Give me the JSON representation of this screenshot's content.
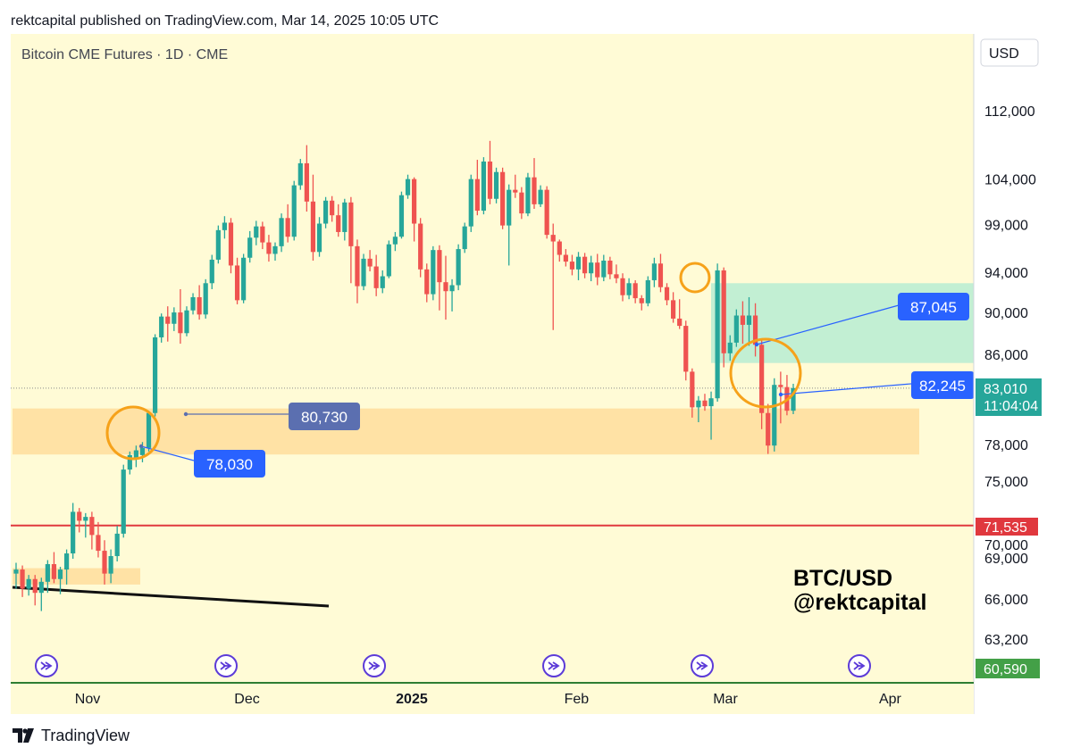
{
  "header": {
    "text": "rektcapital published on TradingView.com, Mar 14, 2025 10:05 UTC"
  },
  "footer": {
    "brand": "TradingView"
  },
  "colors": {
    "background": "#fffbd6",
    "up": "#26a69a",
    "down": "#ef5350",
    "support_zone": "#ffdfa0",
    "resistance_zone": "#b7ecd2",
    "red_line": "#e0383e",
    "circle": "#f6a21a",
    "label_blue": "#2962ff",
    "label_slate": "#5b6fb0",
    "price_label": "#26a69a",
    "low_label": "#43a047"
  },
  "chart_data": {
    "type": "candlestick",
    "title": "Bitcoin CME Futures · 1D · CME",
    "currency": "USD",
    "y_scale": "log",
    "y_ticks": [
      "112,000",
      "104,000",
      "99,000",
      "94,000",
      "90,000",
      "86,000",
      "78,000",
      "75,000",
      "70,000",
      "69,000",
      "66,000",
      "63,200"
    ],
    "x_ticks": [
      "Nov",
      "Dec",
      "2025",
      "Feb",
      "Mar",
      "Apr"
    ],
    "current_price": "83,010",
    "countdown": "11:04:04",
    "red_line_label": "71,535",
    "red_line_value": 71535,
    "low_label": "60,590",
    "overlay_text": [
      "BTC/USD",
      "@rektcapital"
    ],
    "callouts": [
      {
        "label": "80,730"
      },
      {
        "label": "78,030"
      },
      {
        "label": "87,045"
      },
      {
        "label": "82,245"
      }
    ],
    "candles": [
      {
        "d": "2024-10-22",
        "o": 67900,
        "h": 68700,
        "l": 66800,
        "c": 68200
      },
      {
        "d": "2024-10-23",
        "o": 68200,
        "h": 68500,
        "l": 66200,
        "c": 66800
      },
      {
        "d": "2024-10-24",
        "o": 66800,
        "h": 67800,
        "l": 66300,
        "c": 67500
      },
      {
        "d": "2024-10-25",
        "o": 67500,
        "h": 67800,
        "l": 65600,
        "c": 66500
      },
      {
        "d": "2024-10-28",
        "o": 66500,
        "h": 67600,
        "l": 65200,
        "c": 67300
      },
      {
        "d": "2024-10-29",
        "o": 67300,
        "h": 68900,
        "l": 66500,
        "c": 68600
      },
      {
        "d": "2024-10-30",
        "o": 68600,
        "h": 69500,
        "l": 67200,
        "c": 67500
      },
      {
        "d": "2024-10-31",
        "o": 67500,
        "h": 68400,
        "l": 66400,
        "c": 68200
      },
      {
        "d": "2024-11-01",
        "o": 68200,
        "h": 69700,
        "l": 67100,
        "c": 69400
      },
      {
        "d": "2024-11-04",
        "o": 69400,
        "h": 73300,
        "l": 69000,
        "c": 72600
      },
      {
        "d": "2024-11-05",
        "o": 72600,
        "h": 72900,
        "l": 71000,
        "c": 71900
      },
      {
        "d": "2024-11-06",
        "o": 71900,
        "h": 72500,
        "l": 70600,
        "c": 72200
      },
      {
        "d": "2024-11-07",
        "o": 72200,
        "h": 72600,
        "l": 69700,
        "c": 70800
      },
      {
        "d": "2024-11-08",
        "o": 70800,
        "h": 71800,
        "l": 69100,
        "c": 69600
      },
      {
        "d": "2024-11-11",
        "o": 69600,
        "h": 70400,
        "l": 67100,
        "c": 67900
      },
      {
        "d": "2024-11-12",
        "o": 67900,
        "h": 69700,
        "l": 67200,
        "c": 69200
      },
      {
        "d": "2024-11-13",
        "o": 69200,
        "h": 71500,
        "l": 68800,
        "c": 70900
      },
      {
        "d": "2024-11-14",
        "o": 70900,
        "h": 76400,
        "l": 70600,
        "c": 76000
      },
      {
        "d": "2024-11-15",
        "o": 76000,
        "h": 77500,
        "l": 75600,
        "c": 77200
      },
      {
        "d": "2024-11-18",
        "o": 77000,
        "h": 78000,
        "l": 76200,
        "c": 77600
      },
      {
        "d": "2024-11-19",
        "o": 77200,
        "h": 78300,
        "l": 76600,
        "c": 77800
      },
      {
        "d": "2024-11-20",
        "o": 77800,
        "h": 81000,
        "l": 77500,
        "c": 80800
      },
      {
        "d": "2024-11-21",
        "o": 80800,
        "h": 88000,
        "l": 80500,
        "c": 87700
      },
      {
        "d": "2024-11-22",
        "o": 87700,
        "h": 90000,
        "l": 87200,
        "c": 89700
      },
      {
        "d": "2024-11-25",
        "o": 89700,
        "h": 90700,
        "l": 87300,
        "c": 89000
      },
      {
        "d": "2024-11-26",
        "o": 89000,
        "h": 90600,
        "l": 88300,
        "c": 90100
      },
      {
        "d": "2024-11-27",
        "o": 90100,
        "h": 92400,
        "l": 87100,
        "c": 88100
      },
      {
        "d": "2024-11-28",
        "o": 88100,
        "h": 90700,
        "l": 87800,
        "c": 90300
      },
      {
        "d": "2024-11-29",
        "o": 90300,
        "h": 92000,
        "l": 89900,
        "c": 91600
      },
      {
        "d": "2024-12-02",
        "o": 91600,
        "h": 92800,
        "l": 89400,
        "c": 89900
      },
      {
        "d": "2024-12-03",
        "o": 89900,
        "h": 93400,
        "l": 89500,
        "c": 93000
      },
      {
        "d": "2024-12-04",
        "o": 93000,
        "h": 95900,
        "l": 92400,
        "c": 95400
      },
      {
        "d": "2024-12-05",
        "o": 95400,
        "h": 99000,
        "l": 95000,
        "c": 98500
      },
      {
        "d": "2024-12-06",
        "o": 98500,
        "h": 100000,
        "l": 97600,
        "c": 99300
      },
      {
        "d": "2024-12-09",
        "o": 99300,
        "h": 99800,
        "l": 94000,
        "c": 94800
      },
      {
        "d": "2024-12-10",
        "o": 94800,
        "h": 95600,
        "l": 90900,
        "c": 91300
      },
      {
        "d": "2024-12-11",
        "o": 91300,
        "h": 96000,
        "l": 91000,
        "c": 95600
      },
      {
        "d": "2024-12-12",
        "o": 95600,
        "h": 98400,
        "l": 95100,
        "c": 97700
      },
      {
        "d": "2024-12-13",
        "o": 97700,
        "h": 99500,
        "l": 96900,
        "c": 98900
      },
      {
        "d": "2024-12-16",
        "o": 98900,
        "h": 99400,
        "l": 96500,
        "c": 97200
      },
      {
        "d": "2024-12-17",
        "o": 97200,
        "h": 98000,
        "l": 95200,
        "c": 96000
      },
      {
        "d": "2024-12-18",
        "o": 96000,
        "h": 97200,
        "l": 95300,
        "c": 96800
      },
      {
        "d": "2024-12-19",
        "o": 96800,
        "h": 100300,
        "l": 96200,
        "c": 99800
      },
      {
        "d": "2024-12-20",
        "o": 99800,
        "h": 101300,
        "l": 97200,
        "c": 97800
      },
      {
        "d": "2024-12-23",
        "o": 97800,
        "h": 103900,
        "l": 97400,
        "c": 103400
      },
      {
        "d": "2024-12-24",
        "o": 103400,
        "h": 106400,
        "l": 102900,
        "c": 105900
      },
      {
        "d": "2024-12-26",
        "o": 105900,
        "h": 108000,
        "l": 100500,
        "c": 101600
      },
      {
        "d": "2024-12-27",
        "o": 101600,
        "h": 104600,
        "l": 95300,
        "c": 96200
      },
      {
        "d": "2024-12-30",
        "o": 96200,
        "h": 99900,
        "l": 95700,
        "c": 99200
      },
      {
        "d": "2024-12-31",
        "o": 99200,
        "h": 102100,
        "l": 98700,
        "c": 101700
      },
      {
        "d": "2025-01-02",
        "o": 101700,
        "h": 102200,
        "l": 99400,
        "c": 100100
      },
      {
        "d": "2025-01-03",
        "o": 100100,
        "h": 101300,
        "l": 97800,
        "c": 98300
      },
      {
        "d": "2025-01-06",
        "o": 98300,
        "h": 101900,
        "l": 97400,
        "c": 101500
      },
      {
        "d": "2025-01-07",
        "o": 101500,
        "h": 102100,
        "l": 93000,
        "c": 96800
      },
      {
        "d": "2025-01-08",
        "o": 96800,
        "h": 97500,
        "l": 91000,
        "c": 92700
      },
      {
        "d": "2025-01-09",
        "o": 92700,
        "h": 96000,
        "l": 92300,
        "c": 95500
      },
      {
        "d": "2025-01-10",
        "o": 95500,
        "h": 96400,
        "l": 94200,
        "c": 94700
      },
      {
        "d": "2025-01-13",
        "o": 94700,
        "h": 95900,
        "l": 91700,
        "c": 92500
      },
      {
        "d": "2025-01-14",
        "o": 92500,
        "h": 94300,
        "l": 92000,
        "c": 93700
      },
      {
        "d": "2025-01-15",
        "o": 93700,
        "h": 97400,
        "l": 93500,
        "c": 97000
      },
      {
        "d": "2025-01-16",
        "o": 97000,
        "h": 98300,
        "l": 96300,
        "c": 97800
      },
      {
        "d": "2025-01-17",
        "o": 97800,
        "h": 102700,
        "l": 97600,
        "c": 102300
      },
      {
        "d": "2025-01-20",
        "o": 102300,
        "h": 104600,
        "l": 101900,
        "c": 104100
      },
      {
        "d": "2025-01-21",
        "o": 104100,
        "h": 104300,
        "l": 97300,
        "c": 99200
      },
      {
        "d": "2025-01-22",
        "o": 99200,
        "h": 99800,
        "l": 93600,
        "c": 94400
      },
      {
        "d": "2025-01-23",
        "o": 94400,
        "h": 95000,
        "l": 91100,
        "c": 91900
      },
      {
        "d": "2025-01-24",
        "o": 91900,
        "h": 96800,
        "l": 91300,
        "c": 96400
      },
      {
        "d": "2025-01-27",
        "o": 96400,
        "h": 96900,
        "l": 90300,
        "c": 93100
      },
      {
        "d": "2025-01-28",
        "o": 93100,
        "h": 95800,
        "l": 89400,
        "c": 92200
      },
      {
        "d": "2025-01-29",
        "o": 92200,
        "h": 93400,
        "l": 90200,
        "c": 92800
      },
      {
        "d": "2025-01-30",
        "o": 92800,
        "h": 97000,
        "l": 92300,
        "c": 96500
      },
      {
        "d": "2025-01-31",
        "o": 96500,
        "h": 99300,
        "l": 96100,
        "c": 98900
      },
      {
        "d": "2025-02-03",
        "o": 98900,
        "h": 104600,
        "l": 98300,
        "c": 104100
      },
      {
        "d": "2025-02-04",
        "o": 104100,
        "h": 106300,
        "l": 100100,
        "c": 100600
      },
      {
        "d": "2025-02-05",
        "o": 100600,
        "h": 106600,
        "l": 100200,
        "c": 106100
      },
      {
        "d": "2025-02-06",
        "o": 106100,
        "h": 108500,
        "l": 101300,
        "c": 101900
      },
      {
        "d": "2025-02-07",
        "o": 101900,
        "h": 105400,
        "l": 101400,
        "c": 104900
      },
      {
        "d": "2025-02-10",
        "o": 104900,
        "h": 105400,
        "l": 98600,
        "c": 99000
      },
      {
        "d": "2025-02-11",
        "o": 99000,
        "h": 103500,
        "l": 94800,
        "c": 102900
      },
      {
        "d": "2025-02-12",
        "o": 102900,
        "h": 104600,
        "l": 102000,
        "c": 102600
      },
      {
        "d": "2025-02-13",
        "o": 102600,
        "h": 103200,
        "l": 99700,
        "c": 100300
      },
      {
        "d": "2025-02-14",
        "o": 100300,
        "h": 104800,
        "l": 100000,
        "c": 104300
      },
      {
        "d": "2025-02-17",
        "o": 104300,
        "h": 106500,
        "l": 100800,
        "c": 101300
      },
      {
        "d": "2025-02-18",
        "o": 101300,
        "h": 103400,
        "l": 101000,
        "c": 102900
      },
      {
        "d": "2025-02-19",
        "o": 102900,
        "h": 103300,
        "l": 97600,
        "c": 98000
      },
      {
        "d": "2025-02-20",
        "o": 98000,
        "h": 99200,
        "l": 88400,
        "c": 97300
      },
      {
        "d": "2025-02-21",
        "o": 97300,
        "h": 97500,
        "l": 95200,
        "c": 95900
      },
      {
        "d": "2025-02-24",
        "o": 95900,
        "h": 96500,
        "l": 94700,
        "c": 95200
      },
      {
        "d": "2025-02-25",
        "o": 95200,
        "h": 95900,
        "l": 93800,
        "c": 94400
      },
      {
        "d": "2025-02-26",
        "o": 94400,
        "h": 96200,
        "l": 93300,
        "c": 95700
      },
      {
        "d": "2025-02-27",
        "o": 95700,
        "h": 96100,
        "l": 93500,
        "c": 94000
      },
      {
        "d": "2025-02-28",
        "o": 94000,
        "h": 95800,
        "l": 93200,
        "c": 95100
      },
      {
        "d": "2025-03-03",
        "o": 95100,
        "h": 96000,
        "l": 92800,
        "c": 93600
      },
      {
        "d": "2025-03-04",
        "o": 93600,
        "h": 95900,
        "l": 93200,
        "c": 95300
      },
      {
        "d": "2025-03-05",
        "o": 95300,
        "h": 95700,
        "l": 93400,
        "c": 93900
      },
      {
        "d": "2025-03-06",
        "o": 93900,
        "h": 94900,
        "l": 93000,
        "c": 93500
      },
      {
        "d": "2025-03-07",
        "o": 93500,
        "h": 94000,
        "l": 91200,
        "c": 91800
      },
      {
        "d": "2025-03-10",
        "o": 91800,
        "h": 93500,
        "l": 91400,
        "c": 93000
      },
      {
        "d": "2025-03-11",
        "o": 93000,
        "h": 93300,
        "l": 91000,
        "c": 91500
      },
      {
        "d": "2025-03-12",
        "o": 91500,
        "h": 91800,
        "l": 90300,
        "c": 91000
      },
      {
        "d": "2025-03-13",
        "o": 91000,
        "h": 93700,
        "l": 90700,
        "c": 93300
      },
      {
        "d": "2025-03-14",
        "o": 93300,
        "h": 95600,
        "l": 92600,
        "c": 95000
      },
      {
        "d": "2025-03-17",
        "o": 95000,
        "h": 96000,
        "l": 92100,
        "c": 92600
      },
      {
        "d": "2025-03-18",
        "o": 92600,
        "h": 93000,
        "l": 90800,
        "c": 91300
      },
      {
        "d": "2025-03-19",
        "o": 91300,
        "h": 92100,
        "l": 89100,
        "c": 89500
      },
      {
        "d": "2025-03-20",
        "o": 89500,
        "h": 91400,
        "l": 88500,
        "c": 88800
      },
      {
        "d": "2025-03-21",
        "o": 88800,
        "h": 89300,
        "l": 83700,
        "c": 84500
      },
      {
        "d": "2025-03-24",
        "o": 84500,
        "h": 84800,
        "l": 80400,
        "c": 81300
      },
      {
        "d": "2025-03-25",
        "o": 81300,
        "h": 82300,
        "l": 80000,
        "c": 81900
      },
      {
        "d": "2025-03-26",
        "o": 81900,
        "h": 82500,
        "l": 81000,
        "c": 81400
      },
      {
        "d": "2025-03-27",
        "o": 81400,
        "h": 82700,
        "l": 78500,
        "c": 82100
      },
      {
        "d": "2025-03-28",
        "o": 82100,
        "h": 95000,
        "l": 81800,
        "c": 94300
      },
      {
        "d": "2025-03-31",
        "o": 94300,
        "h": 94600,
        "l": 84900,
        "c": 86200
      },
      {
        "d": "2025-04-01",
        "o": 86200,
        "h": 87900,
        "l": 85500,
        "c": 87200
      },
      {
        "d": "2025-04-02",
        "o": 87200,
        "h": 90400,
        "l": 86800,
        "c": 89800
      },
      {
        "d": "2025-04-03",
        "o": 89800,
        "h": 91200,
        "l": 87100,
        "c": 88900
      },
      {
        "d": "2025-04-04",
        "o": 88900,
        "h": 91600,
        "l": 86900,
        "c": 89800
      },
      {
        "d": "2025-04-07",
        "o": 89800,
        "h": 91000,
        "l": 85900,
        "c": 87000
      },
      {
        "d": "2025-04-08",
        "o": 87000,
        "h": 87400,
        "l": 79400,
        "c": 80800
      },
      {
        "d": "2025-04-09",
        "o": 80800,
        "h": 81600,
        "l": 77300,
        "c": 78000
      },
      {
        "d": "2025-04-10",
        "o": 78000,
        "h": 83900,
        "l": 77500,
        "c": 83300
      },
      {
        "d": "2025-04-11",
        "o": 83300,
        "h": 84500,
        "l": 79900,
        "c": 83100
      },
      {
        "d": "2025-04-14",
        "o": 83100,
        "h": 84200,
        "l": 80600,
        "c": 81000
      },
      {
        "d": "2025-04-15",
        "o": 81000,
        "h": 83400,
        "l": 80700,
        "c": 83010
      }
    ]
  }
}
